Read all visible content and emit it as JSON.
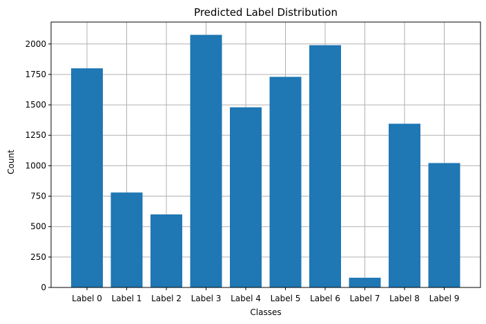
{
  "chart_data": {
    "type": "bar",
    "title": "Predicted Label Distribution",
    "xlabel": "Classes",
    "ylabel": "Count",
    "categories": [
      "Label 0",
      "Label 1",
      "Label 2",
      "Label 3",
      "Label 4",
      "Label 5",
      "Label 6",
      "Label 7",
      "Label 8",
      "Label 9"
    ],
    "values": [
      1800,
      780,
      600,
      2075,
      1480,
      1730,
      1990,
      80,
      1345,
      1022
    ],
    "ylim": [
      0,
      2180
    ],
    "yticks": [
      0,
      250,
      500,
      750,
      1000,
      1250,
      1500,
      1750,
      2000
    ],
    "grid": true,
    "bar_color": "#1f77b4"
  }
}
